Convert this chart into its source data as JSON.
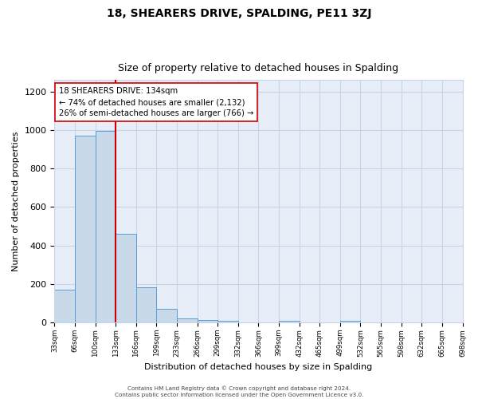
{
  "title": "18, SHEARERS DRIVE, SPALDING, PE11 3ZJ",
  "subtitle": "Size of property relative to detached houses in Spalding",
  "xlabel": "Distribution of detached houses by size in Spalding",
  "ylabel": "Number of detached properties",
  "num_bins": 20,
  "bar_heights": [
    170,
    970,
    995,
    460,
    185,
    70,
    22,
    14,
    8,
    0,
    0,
    8,
    0,
    0,
    8,
    0,
    0,
    0,
    0,
    0
  ],
  "bar_color": "#c8daea",
  "bar_edge_color": "#5b9bd5",
  "tick_labels": [
    "33sqm",
    "66sqm",
    "100sqm",
    "133sqm",
    "166sqm",
    "199sqm",
    "233sqm",
    "266sqm",
    "299sqm",
    "332sqm",
    "366sqm",
    "399sqm",
    "432sqm",
    "465sqm",
    "499sqm",
    "532sqm",
    "565sqm",
    "598sqm",
    "632sqm",
    "665sqm",
    "698sqm"
  ],
  "property_line_bin": 3,
  "property_line_color": "#cc0000",
  "ylim": [
    0,
    1260
  ],
  "yticks": [
    0,
    200,
    400,
    600,
    800,
    1000,
    1200
  ],
  "annotation_text_line1": "18 SHEARERS DRIVE: 134sqm",
  "annotation_text_line2": "← 74% of detached houses are smaller (2,132)",
  "annotation_text_line3": "26% of semi-detached houses are larger (766) →",
  "annotation_box_color": "#cc0000",
  "grid_color": "#c8d4e8",
  "bg_color": "#e8eef8",
  "footer_text": "Contains HM Land Registry data © Crown copyright and database right 2024.\nContains public sector information licensed under the Open Government Licence v3.0.",
  "title_fontsize": 10,
  "subtitle_fontsize": 9,
  "ylabel_fontsize": 8,
  "xlabel_fontsize": 8
}
